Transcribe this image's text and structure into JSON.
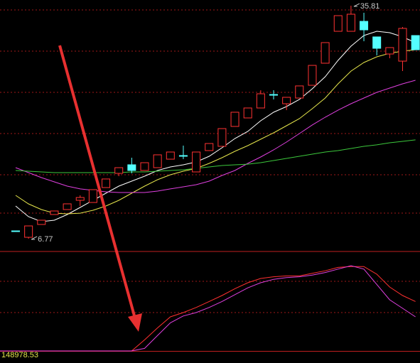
{
  "chart_data": [
    {
      "type": "candlestick",
      "categories": [
        null,
        null,
        null,
        null,
        null,
        null,
        null,
        null,
        null,
        null,
        null,
        null,
        null,
        null,
        null,
        null,
        null,
        null,
        null,
        null,
        null,
        null,
        null,
        null,
        null,
        null,
        null,
        null,
        null,
        null,
        null,
        null
      ],
      "open": [
        7.74,
        6.94,
        8.54,
        9.78,
        10.4,
        11.55,
        11.28,
        13.14,
        14.91,
        15.98,
        15.27,
        15.62,
        16.68,
        17.13,
        15.09,
        17.75,
        18.28,
        20.76,
        21.82,
        23.06,
        24.74,
        23.59,
        24.3,
        25.89,
        28.64,
        32.62,
        32.62,
        33.86,
        31.92,
        29.79,
        28.9,
        32.09
      ],
      "high": [
        7.74,
        8.36,
        9.07,
        10.22,
        11.11,
        12.17,
        12.88,
        14.21,
        15.62,
        16.86,
        16.24,
        17.22,
        17.57,
        18.37,
        17.57,
        18.63,
        20.49,
        22.53,
        23.06,
        25.27,
        25.27,
        24.39,
        25.81,
        28.37,
        31.21,
        34.57,
        35.81,
        34.93,
        31.92,
        30.59,
        33.16,
        32.09
      ],
      "low": [
        7.74,
        6.77,
        8.54,
        9.78,
        10.4,
        10.84,
        11.28,
        13.14,
        14.56,
        14.91,
        15.27,
        15.62,
        16.68,
        16.68,
        15.09,
        17.75,
        18.28,
        20.76,
        21.82,
        23.06,
        24.12,
        22.79,
        24.3,
        25.89,
        28.64,
        32.62,
        32.62,
        31.38,
        29.61,
        29.26,
        27.67,
        30.32
      ],
      "close": [
        7.74,
        8.36,
        9.07,
        10.22,
        11.11,
        11.9,
        12.88,
        14.21,
        15.62,
        15.27,
        16.24,
        17.22,
        17.57,
        17.13,
        17.57,
        18.63,
        20.49,
        22.53,
        23.06,
        24.83,
        24.74,
        24.39,
        25.81,
        28.37,
        31.21,
        34.57,
        34.75,
        32.8,
        30.5,
        30.59,
        32.98,
        30.32
      ],
      "up_color": "#ff3232",
      "down_color": "#54ffff",
      "series": [
        {
          "color": "#ffffff",
          "values": [
            10.84,
            9.51,
            8.89,
            9.07,
            9.78,
            10.66,
            11.55,
            12.43,
            13.32,
            13.94,
            14.56,
            15.27,
            15.71,
            15.98,
            16.33,
            17.04,
            18.1,
            19.25,
            20.14,
            21.47,
            22.53,
            23.24,
            24.12,
            25.45,
            26.96,
            28.99,
            30.76,
            32.09,
            32.62,
            32.45,
            31.92,
            31.21
          ]
        },
        {
          "color": "#e6e64c",
          "values": [
            12.17,
            11.11,
            10.4,
            9.95,
            9.87,
            9.95,
            10.31,
            10.84,
            11.55,
            12.43,
            13.32,
            14.12,
            14.74,
            15.18,
            15.53,
            16.15,
            16.86,
            17.66,
            18.37,
            19.16,
            19.96,
            20.85,
            21.73,
            22.97,
            24.3,
            26.07,
            27.66,
            28.73,
            29.44,
            29.88,
            30.14,
            30.32
          ]
        },
        {
          "color": "#e040e0",
          "values": [
            15.62,
            15.0,
            14.38,
            13.85,
            13.32,
            12.97,
            12.79,
            12.61,
            12.52,
            12.52,
            12.52,
            12.7,
            12.97,
            13.23,
            13.5,
            13.94,
            14.65,
            15.27,
            16.15,
            16.95,
            17.84,
            18.81,
            19.87,
            20.94,
            21.91,
            22.79,
            23.59,
            24.3,
            25.01,
            25.54,
            26.07,
            26.51
          ]
        },
        {
          "color": "#3cc83c",
          "values": [
            15.27,
            15.18,
            15.09,
            15.0,
            15.0,
            15.0,
            15.0,
            15.0,
            15.0,
            15.09,
            15.09,
            15.18,
            15.27,
            15.36,
            15.53,
            15.71,
            15.89,
            15.98,
            16.06,
            16.24,
            16.51,
            16.77,
            17.04,
            17.3,
            17.57,
            17.75,
            18.01,
            18.28,
            18.46,
            18.72,
            18.9,
            19.08
          ]
        }
      ],
      "annotations": [
        {
          "text": "35.81",
          "value": 35.81,
          "index": 26
        },
        {
          "text": "6.77",
          "value": 6.77,
          "index": 1
        }
      ],
      "ylim": [
        5.35,
        36.52
      ],
      "grid": true
    },
    {
      "type": "line",
      "annotation": "148978.53",
      "series": [
        {
          "color": "#ff3030",
          "values": [
            0,
            0,
            0,
            0,
            0,
            0,
            0,
            0,
            0,
            0,
            13,
            27,
            40,
            45,
            51,
            58,
            65,
            73,
            80,
            85,
            87,
            88,
            88,
            91,
            94,
            98,
            99,
            99,
            90,
            75,
            65,
            58
          ]
        },
        {
          "color": "#e040e0",
          "values": [
            0,
            0,
            0,
            0,
            0,
            0,
            0,
            0,
            0,
            0,
            3,
            18,
            33,
            41,
            45,
            51,
            58,
            66,
            74,
            80,
            84,
            86,
            87,
            89,
            92,
            96,
            100,
            96,
            78,
            60,
            50,
            40
          ]
        }
      ],
      "ylim": [
        0,
        100
      ]
    }
  ]
}
